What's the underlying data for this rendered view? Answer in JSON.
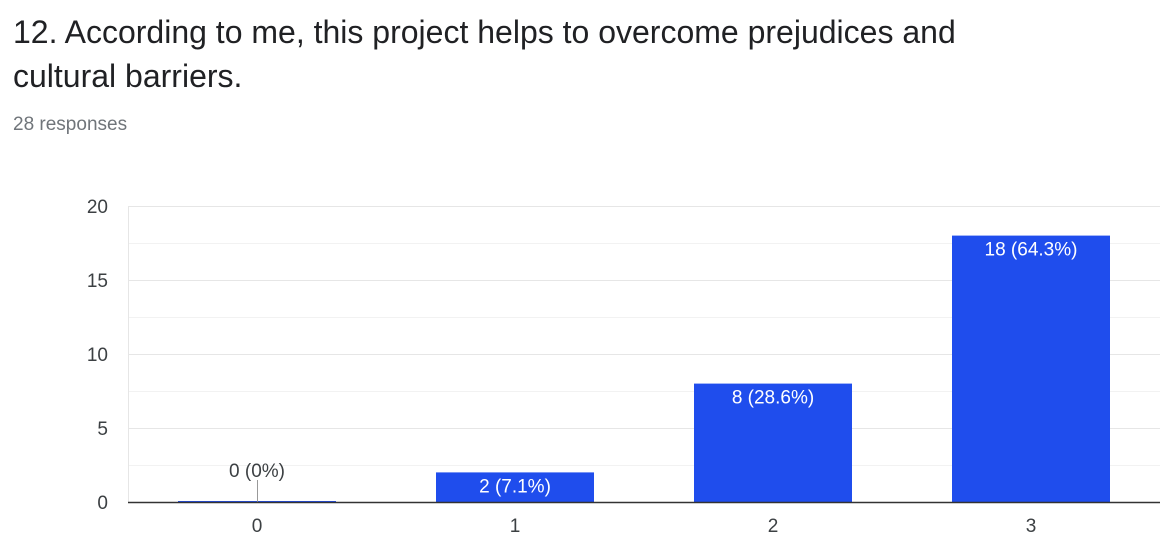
{
  "question": {
    "title": "12. According to me, this project helps to overcome prejudices and cultural barriers.",
    "responses": "28 responses"
  },
  "colors": {
    "bar": "#1f4ded",
    "grid": "#e8e8e8",
    "axis": "#333333",
    "label_inside": "#ffffff",
    "label_outside": "#3c4043"
  },
  "chart_data": {
    "type": "bar",
    "categories": [
      "0",
      "1",
      "2",
      "3"
    ],
    "values": [
      0,
      2,
      8,
      18
    ],
    "data_labels": [
      "0 (0%)",
      "2 (7.1%)",
      "8 (28.6%)",
      "18 (64.3%)"
    ],
    "y_ticks": [
      "0",
      "5",
      "10",
      "15",
      "20"
    ],
    "ylim": [
      0,
      20
    ],
    "grid": true,
    "title": "12. According to me, this project helps to overcome prejudices and cultural barriers.",
    "xlabel": "",
    "ylabel": ""
  }
}
